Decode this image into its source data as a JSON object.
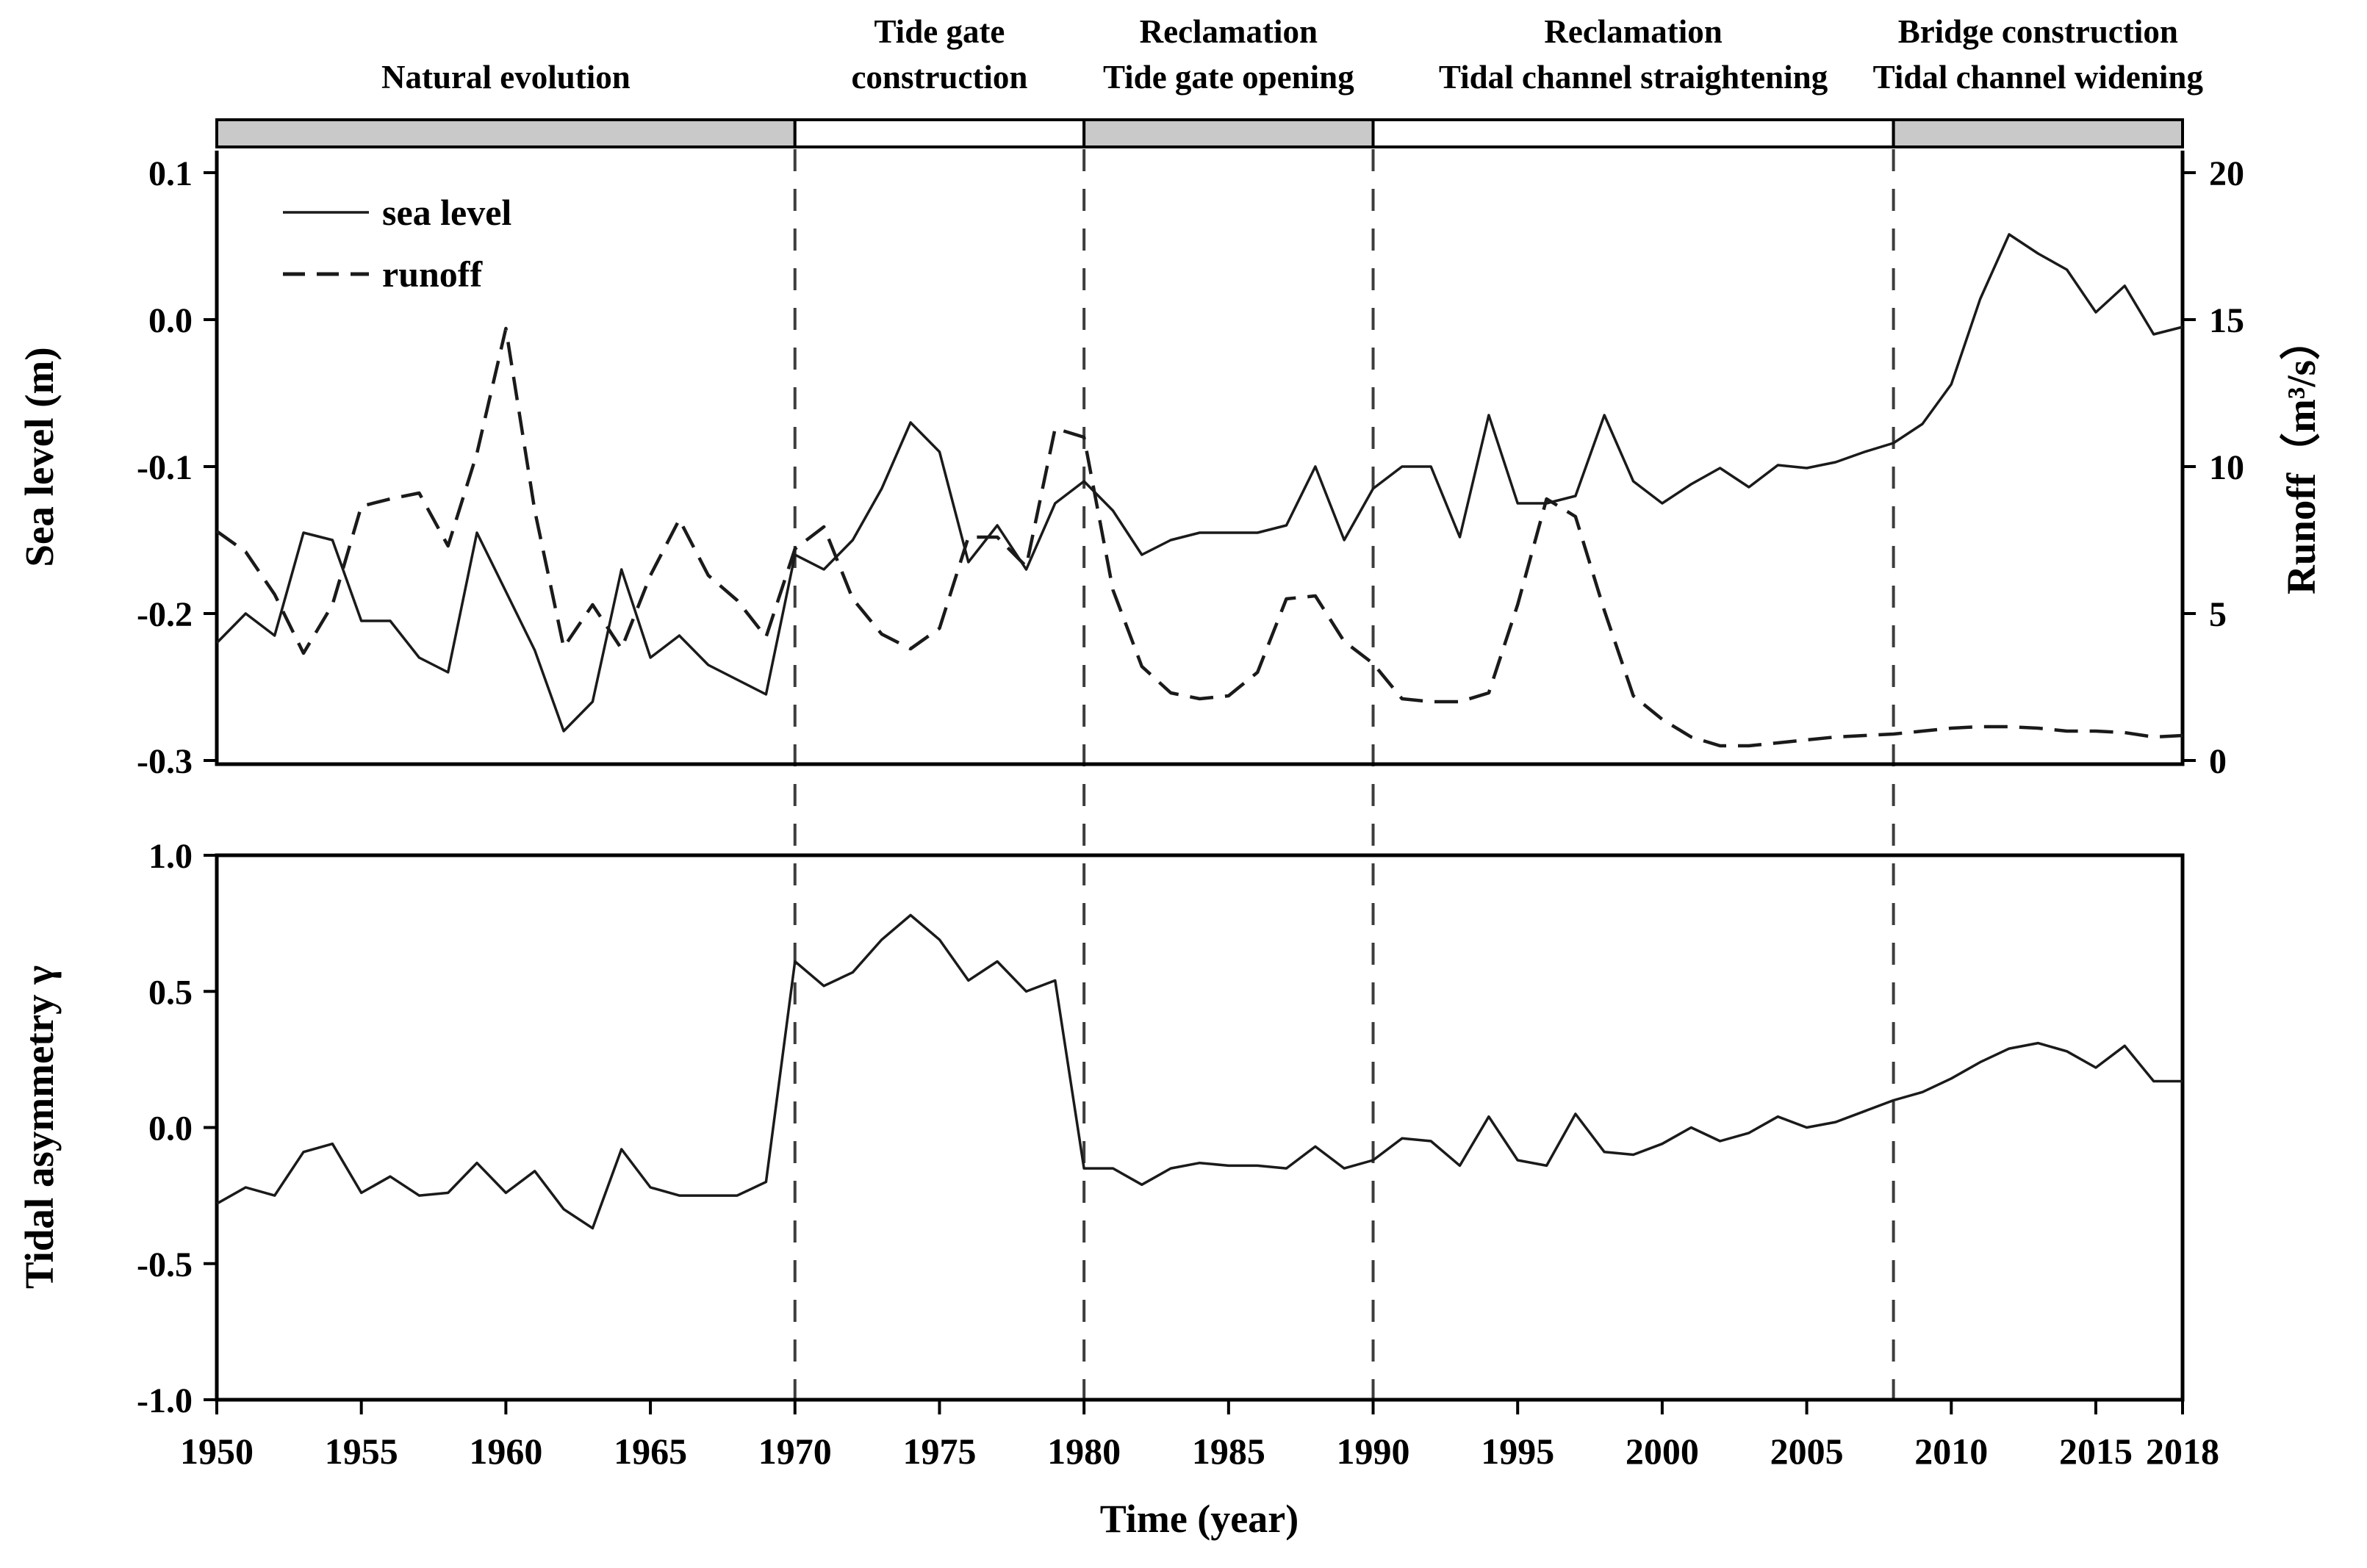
{
  "colors": {
    "curve": "#1a1a1a",
    "bar_gray": "#c9c9c9",
    "bar_white": "#ffffff",
    "bar_border": "#000000",
    "guide_line": "#3d3d3d",
    "background": "#ffffff"
  },
  "annotations": {
    "periods": [
      {
        "label_lines": [
          "Natural evolution"
        ],
        "start": 1950,
        "end": 1970,
        "shaded": true
      },
      {
        "label_lines": [
          "Tide gate",
          "construction"
        ],
        "start": 1970,
        "end": 1980,
        "shaded": false
      },
      {
        "label_lines": [
          "Reclamation",
          "Tide gate opening"
        ],
        "start": 1980,
        "end": 1990,
        "shaded": true
      },
      {
        "label_lines": [
          "Reclamation",
          "Tidal channel straightening"
        ],
        "start": 1990,
        "end": 2008,
        "shaded": false
      },
      {
        "label_lines": [
          "Bridge construction",
          "Tidal channel widening"
        ],
        "start": 2008,
        "end": 2018,
        "shaded": true
      }
    ],
    "dividers": [
      1970,
      1980,
      1990,
      2008
    ]
  },
  "chart_data": [
    {
      "type": "line",
      "panel": "top",
      "title": "",
      "legend_position": "top-left",
      "grid": false,
      "x": [
        1950,
        1951,
        1952,
        1953,
        1954,
        1955,
        1956,
        1957,
        1958,
        1959,
        1960,
        1961,
        1962,
        1963,
        1964,
        1965,
        1966,
        1967,
        1968,
        1969,
        1970,
        1971,
        1972,
        1973,
        1974,
        1975,
        1976,
        1977,
        1978,
        1979,
        1980,
        1981,
        1982,
        1983,
        1984,
        1985,
        1986,
        1987,
        1988,
        1989,
        1990,
        1991,
        1992,
        1993,
        1994,
        1995,
        1996,
        1997,
        1998,
        1999,
        2000,
        2001,
        2002,
        2003,
        2004,
        2005,
        2006,
        2007,
        2008,
        2009,
        2010,
        2011,
        2012,
        2013,
        2014,
        2015,
        2016,
        2017,
        2018
      ],
      "series": [
        {
          "name": "sea level",
          "style": "solid",
          "axis": "left",
          "values": [
            -0.22,
            -0.2,
            -0.215,
            -0.145,
            -0.15,
            -0.205,
            -0.205,
            -0.23,
            -0.24,
            -0.145,
            -0.185,
            -0.225,
            -0.28,
            -0.26,
            -0.17,
            -0.23,
            -0.215,
            -0.235,
            -0.245,
            -0.255,
            -0.16,
            -0.17,
            -0.15,
            -0.115,
            -0.07,
            -0.09,
            -0.165,
            -0.14,
            -0.17,
            -0.125,
            -0.11,
            -0.13,
            -0.16,
            -0.15,
            -0.145,
            -0.145,
            -0.145,
            -0.14,
            -0.1,
            -0.15,
            -0.115,
            -0.1,
            -0.1,
            -0.148,
            -0.065,
            -0.125,
            -0.125,
            -0.12,
            -0.065,
            -0.11,
            -0.125,
            -0.112,
            -0.101,
            -0.114,
            -0.099,
            -0.101,
            -0.097,
            -0.09,
            -0.084,
            -0.071,
            -0.044,
            0.014,
            0.058,
            0.045,
            0.034,
            0.005,
            0.023,
            -0.01,
            -0.005
          ]
        },
        {
          "name": "runoff",
          "style": "dashed",
          "axis": "right",
          "values": [
            7.8,
            7.1,
            5.65,
            3.65,
            5.3,
            8.65,
            8.9,
            9.1,
            7.3,
            10.45,
            14.7,
            8.5,
            3.85,
            5.3,
            3.8,
            6.3,
            8.2,
            6.3,
            5.45,
            4.2,
            7.2,
            7.95,
            5.5,
            4.3,
            3.8,
            4.5,
            7.6,
            7.6,
            6.6,
            11.3,
            11.0,
            5.8,
            3.2,
            2.3,
            2.1,
            2.2,
            3.0,
            5.5,
            5.6,
            4.05,
            3.3,
            2.1,
            2.0,
            2.0,
            2.3,
            5.3,
            8.9,
            8.3,
            5.1,
            2.2,
            1.4,
            0.8,
            0.5,
            0.5,
            0.6,
            0.7,
            0.8,
            0.85,
            0.9,
            1.0,
            1.1,
            1.15,
            1.15,
            1.1,
            1.0,
            1.0,
            0.95,
            0.8,
            0.85
          ]
        }
      ],
      "left_axis": {
        "label": "Sea level (m)",
        "ticks": [
          0.1,
          0.0,
          -0.1,
          -0.2,
          -0.3
        ],
        "tick_labels": [
          "0.1",
          "0.0",
          "-0.1",
          "-0.2",
          "-0.3"
        ],
        "range": [
          -0.3,
          0.1
        ]
      },
      "right_axis": {
        "label": "Runoff（m³/s）",
        "ticks": [
          20,
          15,
          10,
          5,
          0
        ],
        "tick_labels": [
          "20",
          "15",
          "10",
          "5",
          "0"
        ],
        "range": [
          0,
          20
        ]
      }
    },
    {
      "type": "line",
      "panel": "bottom",
      "title": "",
      "grid": false,
      "xlabel": "Time (year)",
      "x": [
        1950,
        1951,
        1952,
        1953,
        1954,
        1955,
        1956,
        1957,
        1958,
        1959,
        1960,
        1961,
        1962,
        1963,
        1964,
        1965,
        1966,
        1967,
        1968,
        1969,
        1970,
        1971,
        1972,
        1973,
        1974,
        1975,
        1976,
        1977,
        1978,
        1979,
        1980,
        1981,
        1982,
        1983,
        1984,
        1985,
        1986,
        1987,
        1988,
        1989,
        1990,
        1991,
        1992,
        1993,
        1994,
        1995,
        1996,
        1997,
        1998,
        1999,
        2000,
        2001,
        2002,
        2003,
        2004,
        2005,
        2006,
        2007,
        2008,
        2009,
        2010,
        2011,
        2012,
        2013,
        2014,
        2015,
        2016,
        2017,
        2018
      ],
      "series": [
        {
          "name": "tidal asymmetry",
          "style": "solid",
          "axis": "left",
          "values": [
            -0.28,
            -0.22,
            -0.25,
            -0.09,
            -0.06,
            -0.24,
            -0.18,
            -0.25,
            -0.24,
            -0.13,
            -0.24,
            -0.16,
            -0.3,
            -0.37,
            -0.08,
            -0.22,
            -0.25,
            -0.25,
            -0.25,
            -0.2,
            0.61,
            0.52,
            0.57,
            0.69,
            0.78,
            0.69,
            0.54,
            0.61,
            0.5,
            0.54,
            -0.15,
            -0.15,
            -0.21,
            -0.15,
            -0.13,
            -0.14,
            -0.14,
            -0.15,
            -0.07,
            -0.15,
            -0.12,
            -0.04,
            -0.05,
            -0.14,
            0.04,
            -0.12,
            -0.14,
            0.05,
            -0.09,
            -0.1,
            -0.06,
            0.0,
            -0.05,
            -0.02,
            0.04,
            0.0,
            0.02,
            0.06,
            0.1,
            0.13,
            0.18,
            0.24,
            0.29,
            0.31,
            0.28,
            0.22,
            0.3,
            0.17,
            0.17
          ]
        }
      ],
      "left_axis": {
        "label": "Tidal asymmetry γ",
        "ticks": [
          1.0,
          0.5,
          0.0,
          -0.5,
          -1.0
        ],
        "tick_labels": [
          "1.0",
          "0.5",
          "0.0",
          "-0.5",
          "-1.0"
        ],
        "range": [
          -1.0,
          1.0
        ]
      },
      "x_ticks": [
        1950,
        1955,
        1960,
        1965,
        1970,
        1975,
        1980,
        1985,
        1990,
        1995,
        2000,
        2005,
        2010,
        2015,
        2018
      ],
      "x_tick_labels": [
        "1950",
        "1955",
        "1960",
        "1965",
        "1970",
        "1975",
        "1980",
        "1985",
        "1990",
        "1995",
        "2000",
        "2005",
        "2010",
        "2015",
        "2018"
      ]
    }
  ]
}
